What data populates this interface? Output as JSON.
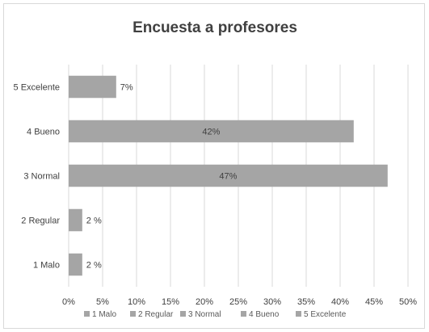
{
  "chart_data": {
    "type": "bar",
    "orientation": "horizontal",
    "title": "Encuesta a profesores",
    "categories": [
      "1 Malo",
      "2 Regular",
      "3 Normal",
      "4 Bueno",
      "5 Excelente"
    ],
    "values": [
      2,
      2,
      47,
      42,
      7
    ],
    "data_labels": [
      "2 %",
      "2 %",
      "47%",
      "42%",
      "7%"
    ],
    "x_ticks": [
      "0%",
      "5%",
      "10%",
      "15%",
      "20%",
      "25%",
      "30%",
      "35%",
      "40%",
      "45%",
      "50%"
    ],
    "xlim": [
      0,
      50
    ],
    "unit": "%",
    "legend": {
      "position": "bottom",
      "entries": [
        "1 Malo",
        "2 Regular",
        "3 Normal",
        "4 Bueno",
        "5 Excelente"
      ]
    },
    "grid": true,
    "bar_color": "#a5a5a5",
    "grid_color": "#d9d9d9"
  }
}
